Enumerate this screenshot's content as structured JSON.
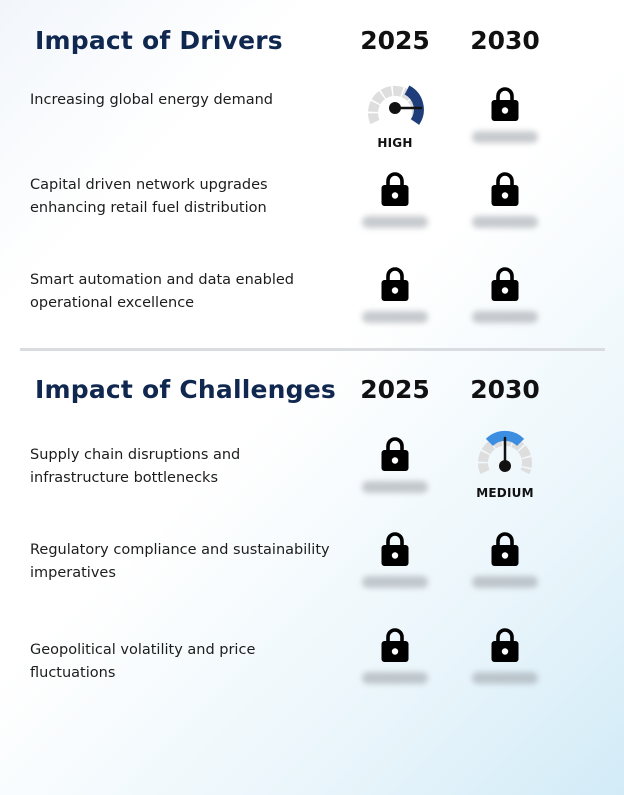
{
  "drivers": {
    "title": "Impact of Drivers",
    "years": [
      "2025",
      "2030"
    ],
    "rows": [
      {
        "label": "Increasing global energy demand",
        "y2025": {
          "locked": false,
          "level": "HIGH"
        },
        "y2030": {
          "locked": true
        }
      },
      {
        "label": "Capital driven network upgrades enhancing retail fuel distribution",
        "y2025": {
          "locked": true
        },
        "y2030": {
          "locked": true
        }
      },
      {
        "label": "Smart automation and data enabled operational excellence",
        "y2025": {
          "locked": true
        },
        "y2030": {
          "locked": true
        }
      }
    ]
  },
  "challenges": {
    "title": "Impact of Challenges",
    "years": [
      "2025",
      "2030"
    ],
    "rows": [
      {
        "label": "Supply chain disruptions and infrastructure bottlenecks",
        "y2025": {
          "locked": true
        },
        "y2030": {
          "locked": false,
          "level": "MEDIUM"
        }
      },
      {
        "label": "Regulatory compliance and sustainability imperatives",
        "y2025": {
          "locked": true
        },
        "y2030": {
          "locked": true
        }
      },
      {
        "label": "Geopolitical volatility and price fluctuations",
        "y2025": {
          "locked": true
        },
        "y2030": {
          "locked": true
        }
      }
    ]
  },
  "colors": {
    "title": "#10284f",
    "high": "#1e3d7a",
    "medium": "#3b8ee0",
    "gauge_track": "#dedede"
  },
  "icons": {
    "lock": "lock-icon",
    "gauge": "gauge-icon"
  }
}
